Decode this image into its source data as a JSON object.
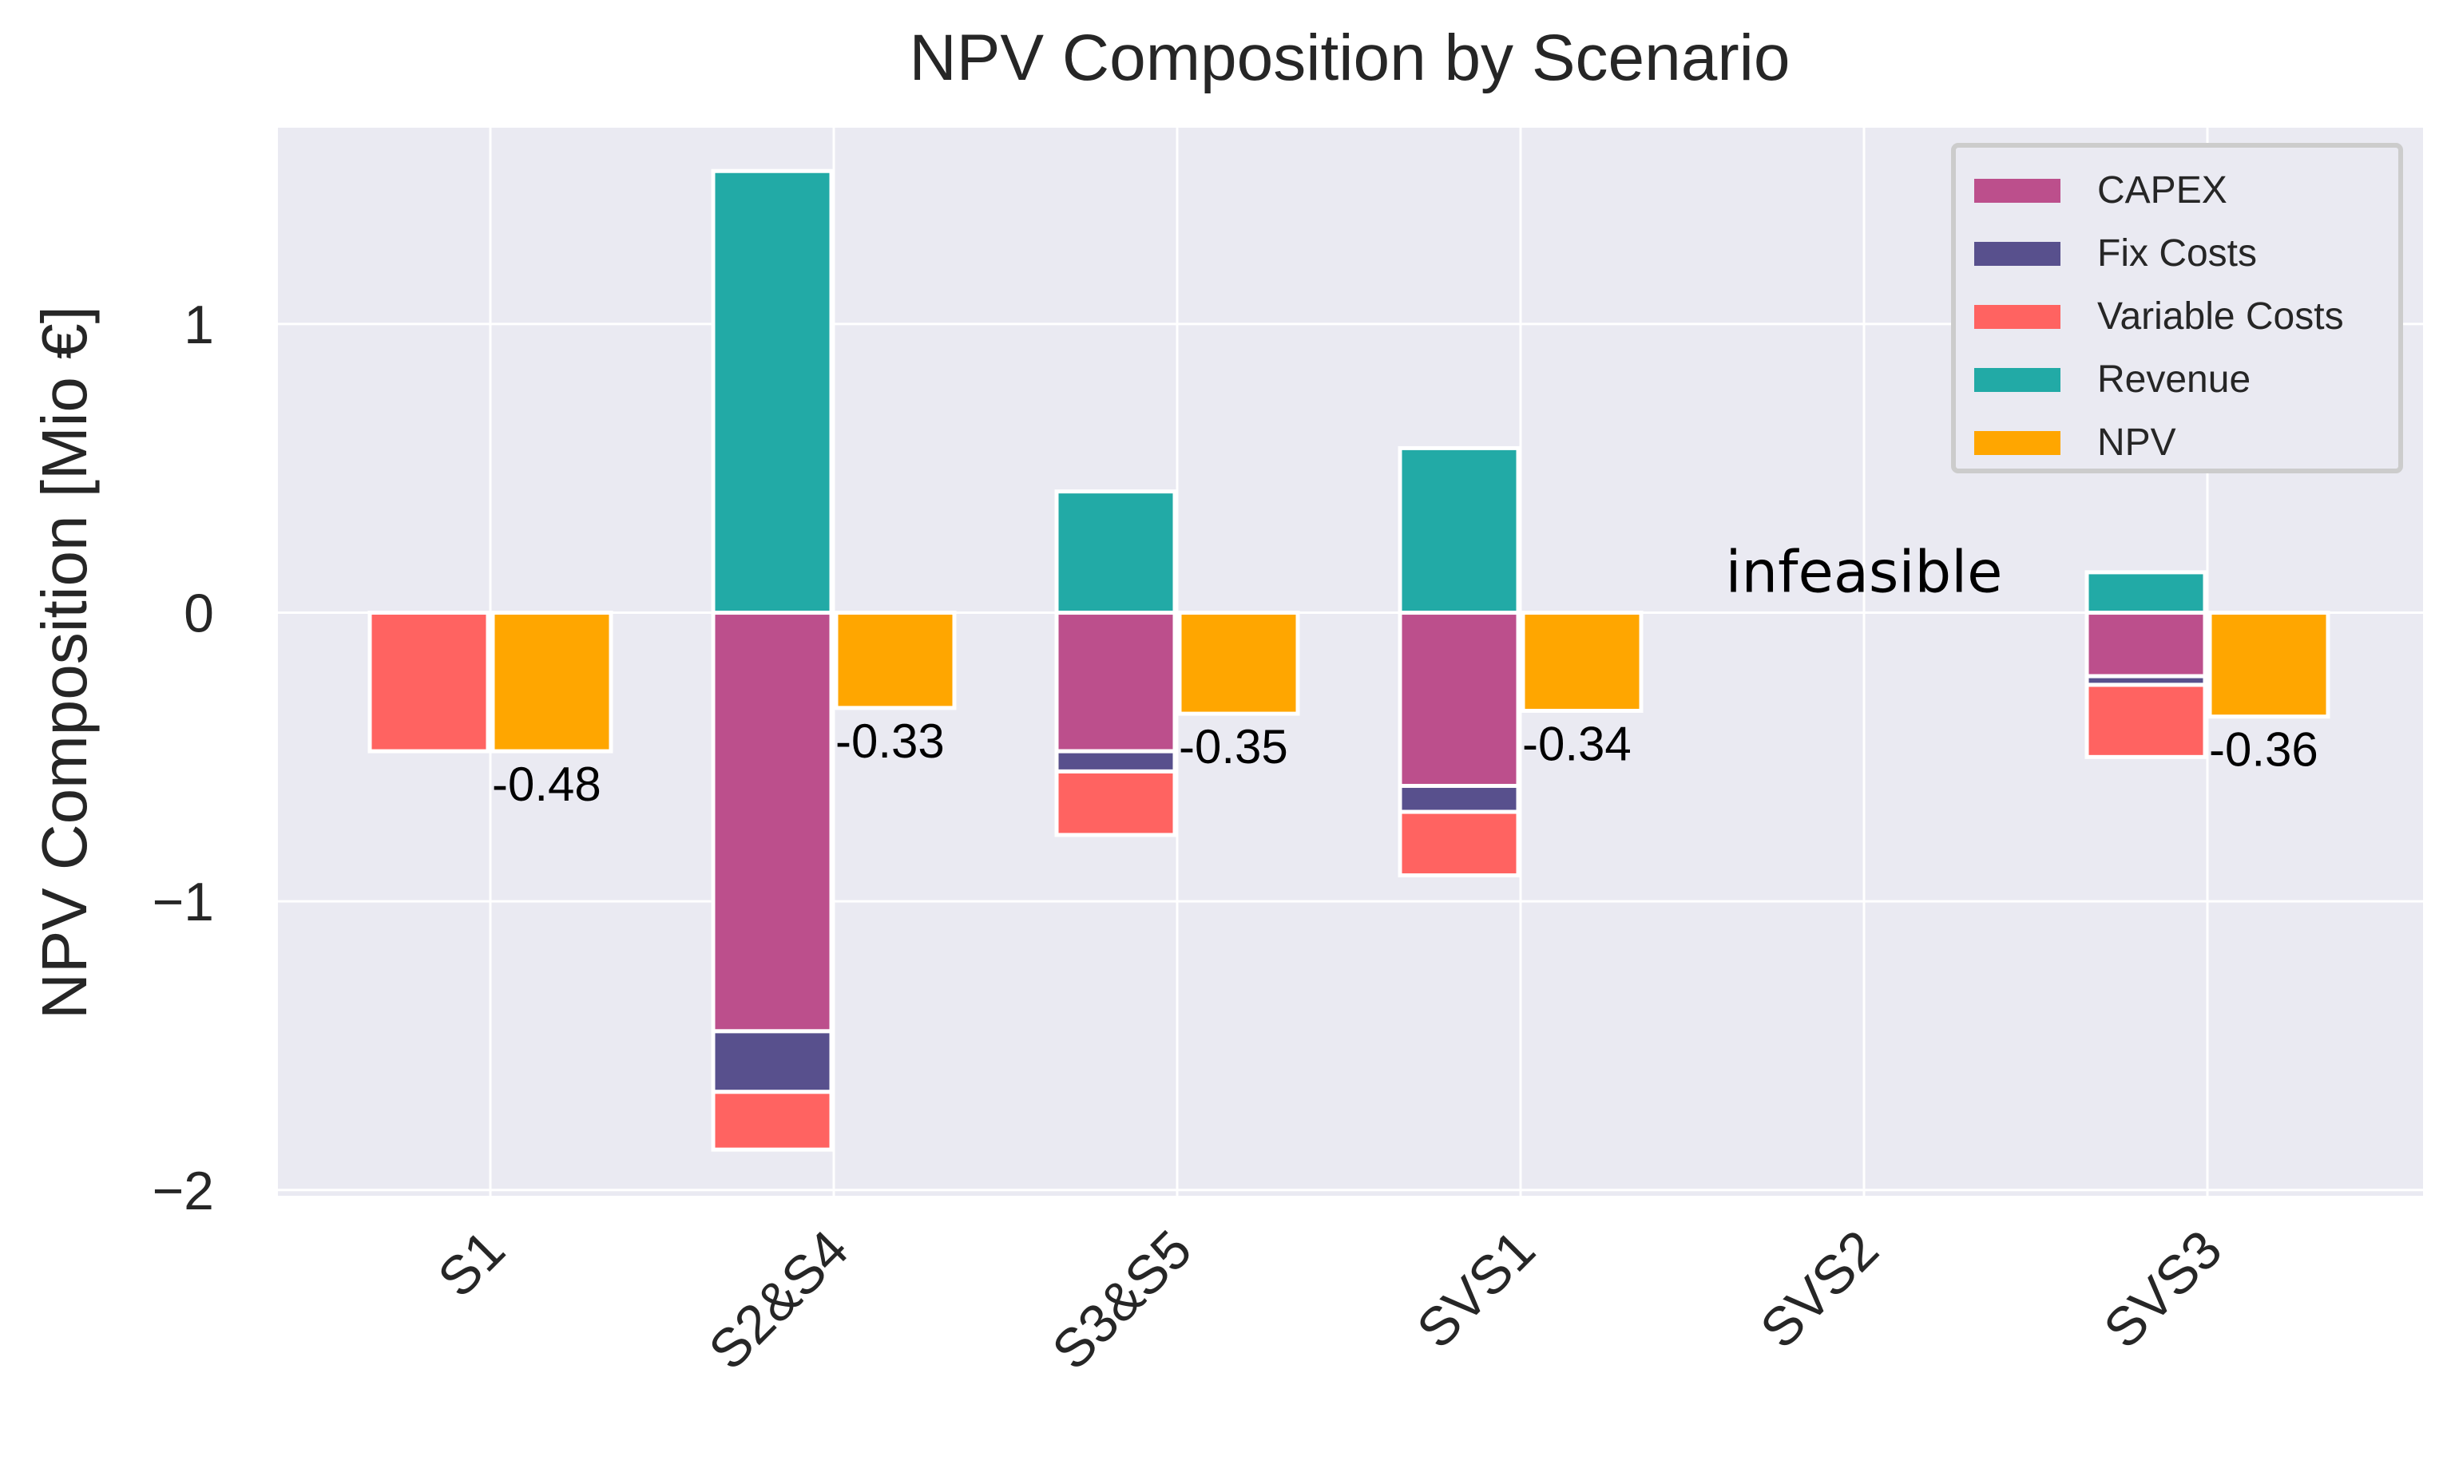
{
  "chart_data": {
    "type": "bar",
    "title": "NPV Composition by Scenario",
    "xlabel": "",
    "ylabel": "NPV Composition [Mio €]",
    "ylim": [
      -2.02,
      1.68
    ],
    "yticks": [
      {
        "value": 1,
        "label": "1"
      },
      {
        "value": 0,
        "label": "0"
      },
      {
        "value": -1,
        "label": "−1"
      },
      {
        "value": -2,
        "label": "−2"
      }
    ],
    "grid": true,
    "legend_position": "top-right",
    "categories": [
      "S1",
      "S2&S4",
      "S3&S5",
      "SVS1",
      "SVS2",
      "SVS3"
    ],
    "colors": {
      "CAPEX": "#bc4f8c",
      "Fix Costs": "#58508d",
      "Variable Costs": "#ff6361",
      "Revenue": "#22aaa6",
      "NPV": "#ffa600",
      "background": "#eaeaf2",
      "grid": "#ffffff"
    },
    "series": [
      {
        "name": "CAPEX",
        "values": [
          0,
          -1.45,
          -0.48,
          -0.6,
          null,
          -0.22
        ]
      },
      {
        "name": "Fix Costs",
        "values": [
          0,
          -0.21,
          -0.07,
          -0.09,
          null,
          -0.03
        ]
      },
      {
        "name": "Variable Costs",
        "values": [
          -0.48,
          -0.2,
          -0.22,
          -0.22,
          null,
          -0.25
        ]
      },
      {
        "name": "Revenue",
        "values": [
          0,
          1.53,
          0.42,
          0.57,
          null,
          0.14
        ]
      },
      {
        "name": "NPV",
        "values": [
          -0.48,
          -0.33,
          -0.35,
          -0.34,
          null,
          -0.36
        ]
      }
    ],
    "npv_labels": [
      "-0.48",
      "-0.33",
      "-0.35",
      "-0.34",
      "",
      "-0.36"
    ],
    "annotations": [
      {
        "category": "SVS2",
        "text": "infeasible"
      }
    ],
    "legend": [
      "CAPEX",
      "Fix Costs",
      "Variable Costs",
      "Revenue",
      "NPV"
    ]
  }
}
